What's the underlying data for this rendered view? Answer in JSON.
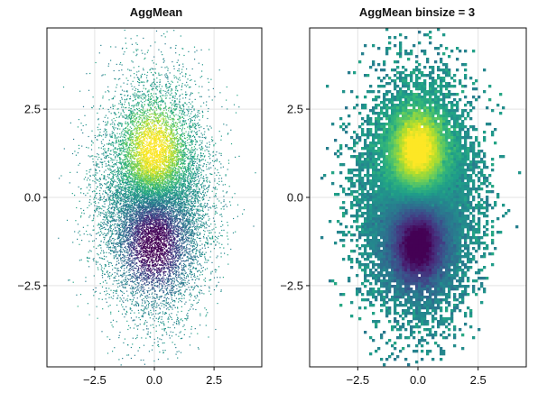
{
  "chart_data": [
    {
      "type": "scatter",
      "title": "AggMean",
      "xlabel": "",
      "ylabel": "",
      "xlim": [
        -4.5,
        4.5
      ],
      "ylim": [
        -4.8,
        4.8
      ],
      "xticks": [
        -2.5,
        0.0,
        2.5
      ],
      "xtick_labels": [
        "−2.5",
        "0.0",
        "2.5"
      ],
      "yticks": [
        -2.5,
        0.0,
        2.5
      ],
      "ytick_labels": [
        "−2.5",
        "0.0",
        "2.5"
      ],
      "grid": true,
      "colormap": "viridis",
      "point_distribution": {
        "type": "gaussian",
        "mean": [
          0,
          0
        ],
        "std_x": 1.1,
        "std_y": 1.5,
        "approx_points": 14000
      },
      "color_function": "exp(-((x)^2 + (y-1.3)^2)/1.3) - exp(-((x)^2 + (y+1.3)^2)/1.3) + noise"
    },
    {
      "type": "heatmap",
      "title": "AggMean binsize = 3",
      "xlabel": "",
      "ylabel": "",
      "xlim": [
        -4.5,
        4.5
      ],
      "ylim": [
        -4.8,
        4.8
      ],
      "xticks": [
        -2.5,
        0.0,
        2.5
      ],
      "xtick_labels": [
        "−2.5",
        "0.0",
        "2.5"
      ],
      "yticks": [
        -2.5,
        0.0,
        2.5
      ],
      "ytick_labels": [
        "−2.5",
        "0.0",
        "2.5"
      ],
      "grid": true,
      "colormap": "viridis",
      "aggregation": "mean",
      "binsize": 3
    }
  ],
  "colors": {
    "viridis": [
      "#440154",
      "#482878",
      "#3e4989",
      "#31688e",
      "#26828e",
      "#1f9e89",
      "#35b779",
      "#6ece58",
      "#b5de2b",
      "#fde725"
    ],
    "frame": "#111111",
    "grid": "#e3e3e3"
  }
}
